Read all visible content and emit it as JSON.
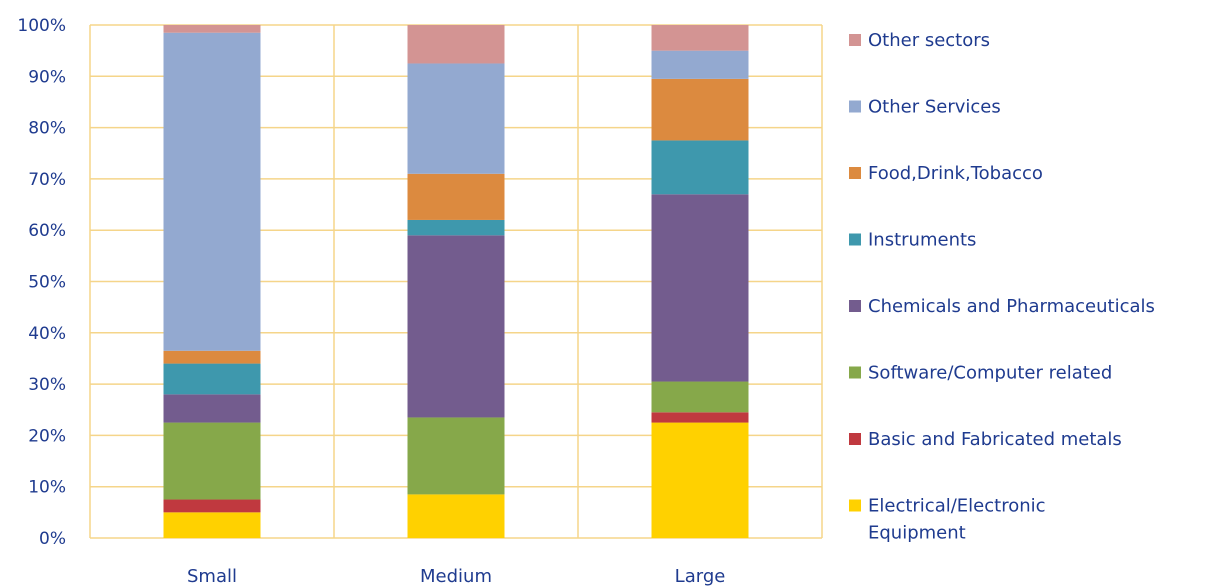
{
  "chart_data": {
    "type": "bar",
    "stacked": true,
    "orientation": "vertical",
    "categories": [
      "Small",
      "Medium",
      "Large"
    ],
    "yticks": [
      "0%",
      "10%",
      "20%",
      "30%",
      "40%",
      "50%",
      "60%",
      "70%",
      "80%",
      "90%",
      "100%"
    ],
    "ylim": [
      0,
      100
    ],
    "grid": true,
    "legend_position": "right",
    "series": [
      {
        "name": "Electrical/Electronic Equipment",
        "legend_lines": [
          "Electrical/Electronic",
          "Equipment"
        ],
        "color": "#FFD100",
        "values": [
          5.0,
          8.5,
          22.5
        ]
      },
      {
        "name": "Basic and Fabricated metals",
        "legend_lines": [
          "Basic and Fabricated metals"
        ],
        "color": "#C0393F",
        "values": [
          2.5,
          0.0,
          2.0
        ]
      },
      {
        "name": "Software/Computer related",
        "legend_lines": [
          "Software/Computer related"
        ],
        "color": "#86A84A",
        "values": [
          15.0,
          15.0,
          6.0
        ]
      },
      {
        "name": "Chemicals and Pharmaceuticals",
        "legend_lines": [
          "Chemicals and Pharmaceuticals"
        ],
        "color": "#735C8E",
        "values": [
          5.5,
          35.5,
          36.5
        ]
      },
      {
        "name": "Instruments",
        "legend_lines": [
          "Instruments"
        ],
        "color": "#3E98AD",
        "values": [
          6.0,
          3.0,
          10.5
        ]
      },
      {
        "name": "Food,Drink,Tobacco",
        "legend_lines": [
          "Food,Drink,Tobacco"
        ],
        "color": "#DC8A3F",
        "values": [
          2.5,
          9.0,
          12.0
        ]
      },
      {
        "name": "Other Services",
        "legend_lines": [
          "Other Services"
        ],
        "color": "#93A9D0",
        "values": [
          62.0,
          21.5,
          5.5
        ]
      },
      {
        "name": "Other sectors",
        "legend_lines": [
          "Other sectors"
        ],
        "color": "#D39493",
        "values": [
          1.5,
          7.5,
          5.0
        ]
      }
    ],
    "colors": {
      "grid": "#F5D58A",
      "text": "#1F3B8F"
    }
  }
}
